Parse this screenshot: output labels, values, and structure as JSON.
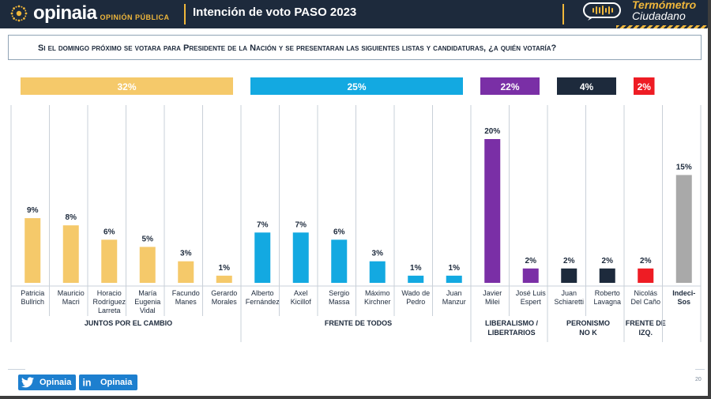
{
  "header": {
    "logo_text": "opinaia",
    "logo_sub": "OPINIÓN PÚBLICA",
    "title": "Intención de voto PASO 2023",
    "brand_title": "Termómetro",
    "brand_sub": "Ciudadano"
  },
  "question": "Si el domingo próximo se votara para Presidente de la Nación y se presentaran las siguientes listas y candidaturas, ¿a quién votaría?",
  "footer": {
    "twitter_label": "Opinaia",
    "linkedin_label": "Opinaia",
    "page_number": "20"
  },
  "colors": {
    "juntos": "#f5c96a",
    "frente": "#13a9e1",
    "libertarios": "#7a2fa6",
    "peronismo": "#1d2a3c",
    "izquierda": "#ee1c24",
    "indecisos": "#a9a9a9"
  },
  "chart_data": {
    "type": "bar",
    "unit": "%",
    "ylim": [
      0,
      22
    ],
    "groups": [
      {
        "name": "JUNTOS POR EL CAMBIO",
        "total": 32,
        "color": "#f5c96a",
        "candidates": [
          {
            "name": [
              "Patricia",
              "Bullrich"
            ],
            "value": 9
          },
          {
            "name": [
              "Mauricio",
              "Macri"
            ],
            "value": 8
          },
          {
            "name": [
              "Horacio",
              "Rodríguez",
              "Larreta"
            ],
            "value": 6
          },
          {
            "name": [
              "María",
              "Eugenia",
              "Vidal"
            ],
            "value": 5
          },
          {
            "name": [
              "Facundo",
              "Manes"
            ],
            "value": 3
          },
          {
            "name": [
              "Gerardo",
              "Morales"
            ],
            "value": 1
          }
        ]
      },
      {
        "name": "FRENTE DE TODOS",
        "total": 25,
        "color": "#13a9e1",
        "candidates": [
          {
            "name": [
              "Alberto",
              "Fernández"
            ],
            "value": 7
          },
          {
            "name": [
              "Axel",
              "Kicillof"
            ],
            "value": 7
          },
          {
            "name": [
              "Sergio",
              "Massa"
            ],
            "value": 6
          },
          {
            "name": [
              "Máximo",
              "Kirchner"
            ],
            "value": 3
          },
          {
            "name": [
              "Wado de",
              "Pedro"
            ],
            "value": 1
          },
          {
            "name": [
              "Juan",
              "Manzur"
            ],
            "value": 1
          }
        ]
      },
      {
        "name": [
          "LIBERALISMO /",
          "LIBERTARIOS"
        ],
        "total": 22,
        "color": "#7a2fa6",
        "candidates": [
          {
            "name": [
              "Javier",
              "Milei"
            ],
            "value": 20
          },
          {
            "name": [
              "José Luis",
              "Espert"
            ],
            "value": 2
          }
        ]
      },
      {
        "name": [
          "PERONISMO",
          "NO K"
        ],
        "total": 4,
        "color": "#1d2a3c",
        "candidates": [
          {
            "name": [
              "Juan",
              "Schiaretti"
            ],
            "value": 2
          },
          {
            "name": [
              "Roberto",
              "Lavagna"
            ],
            "value": 2
          }
        ]
      },
      {
        "name": [
          "FRENTE DE",
          "IZQ."
        ],
        "total": 2,
        "color": "#ee1c24",
        "candidates": [
          {
            "name": [
              "Nicolás",
              "Del Caño"
            ],
            "value": 2
          }
        ]
      },
      {
        "name": "",
        "total": null,
        "color": "#a9a9a9",
        "candidates": [
          {
            "name": [
              "Indeci-",
              "Sos"
            ],
            "value": 15
          }
        ]
      }
    ]
  }
}
